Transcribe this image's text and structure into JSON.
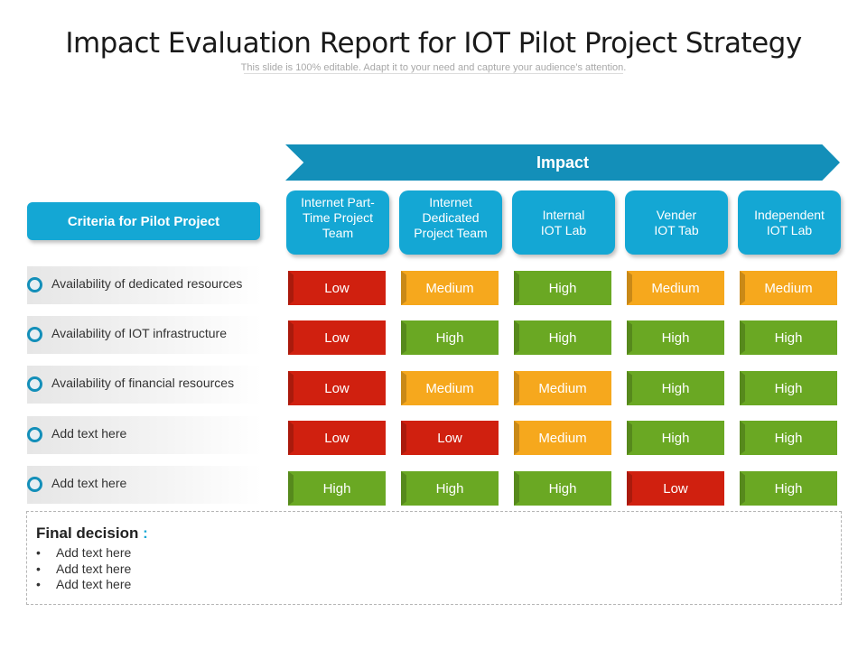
{
  "title": "Impact Evaluation Report for IOT Pilot Project Strategy",
  "subtitle": "This slide is 100% editable. Adapt it to your need and capture your audience’s attention.",
  "impact_label": "Impact",
  "criteria_header": "Criteria for Pilot Project",
  "columns": [
    "Internet Part-\nTime Project\nTeam",
    "Internet\nDedicated\nProject Team",
    "Internal\nIOT Lab",
    "Vender\nIOT Tab",
    "Independent\nIOT Lab"
  ],
  "rows": [
    {
      "label": "Availability  of dedicated resources",
      "values": [
        "Low",
        "Medium",
        "High",
        "Medium",
        "Medium"
      ]
    },
    {
      "label": "Availability  of IOT infrastructure",
      "values": [
        "Low",
        "High",
        "High",
        "High",
        "High"
      ]
    },
    {
      "label": "Availability  of financial resources",
      "values": [
        "Low",
        "Medium",
        "Medium",
        "High",
        "High"
      ]
    },
    {
      "label": "Add text here",
      "values": [
        "Low",
        "Low",
        "Medium",
        "High",
        "High"
      ]
    },
    {
      "label": "Add text here",
      "values": [
        "High",
        "High",
        "High",
        "Low",
        "High"
      ]
    }
  ],
  "level_colors": {
    "Low": "#d0200f",
    "Medium": "#f6a81d",
    "High": "#6aa823"
  },
  "final_decision": {
    "title": "Final decision",
    "colon": ":",
    "items": [
      "Add text here",
      "Add text here",
      "Add text here"
    ]
  }
}
